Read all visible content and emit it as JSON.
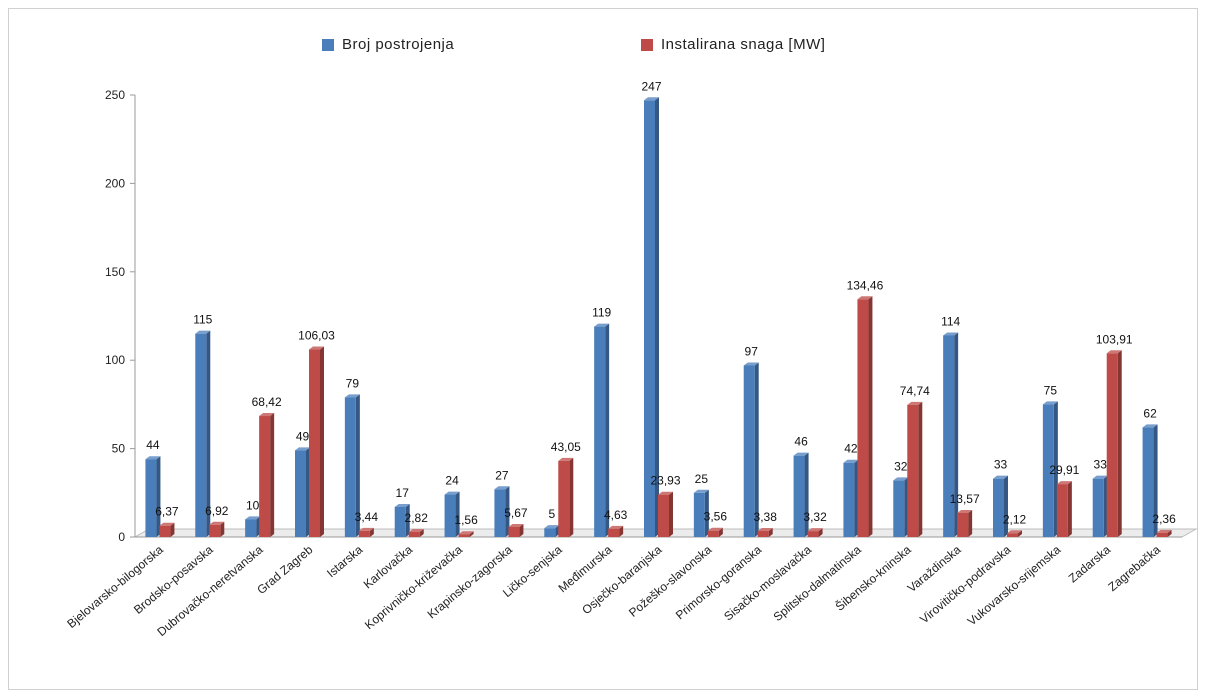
{
  "chart_data": {
    "type": "bar",
    "categories": [
      "Bjelovarsko-bilogorska",
      "Brodsko-posavska",
      "Dubrovačko-neretvanska",
      "Grad Zagreb",
      "Istarska",
      "Karlovačka",
      "Koprivničko-križevačka",
      "Krapinsko-zagorska",
      "Ličko-senjska",
      "Međimurska",
      "Osječko-baranjska",
      "Požeško-slavonska",
      "Primorsko-goranska",
      "Sisačko-moslavačka",
      "Splitsko-dalmatinska",
      "Šibensko-kninska",
      "Varaždinska",
      "Virovitičko-podravska",
      "Vukovarsko-srijemska",
      "Zadarska",
      "Zagrebačka"
    ],
    "series": [
      {
        "name": "Broj postrojenja",
        "color": "#4a7ebb",
        "values": [
          44,
          115,
          10,
          49,
          79,
          17,
          24,
          27,
          5,
          119,
          247,
          25,
          97,
          46,
          42,
          32,
          114,
          33,
          75,
          33,
          62
        ],
        "labels": [
          "44",
          "115",
          "10",
          "49",
          "79",
          "17",
          "24",
          "27",
          "5",
          "119",
          "247",
          "25",
          "97",
          "46",
          "42",
          "32",
          "114",
          "33",
          "75",
          "33",
          "62"
        ]
      },
      {
        "name": "Instalirana snaga [MW]",
        "color": "#be4b48",
        "values": [
          6.37,
          6.92,
          68.42,
          106.03,
          3.44,
          2.82,
          1.56,
          5.67,
          43.05,
          4.63,
          23.93,
          3.56,
          3.38,
          3.32,
          134.46,
          74.74,
          13.57,
          2.12,
          29.91,
          103.91,
          2.36
        ],
        "labels": [
          "6,37",
          "6,92",
          "68,42",
          "106,03",
          "3,44",
          "2,82",
          "1,56",
          "5,67",
          "43,05",
          "4,63",
          "23,93",
          "3,56",
          "3,38",
          "3,32",
          "134,46",
          "74,74",
          "13,57",
          "2,12",
          "29,91",
          "103,91",
          "2,36"
        ]
      }
    ],
    "yticks": [
      "0",
      "50",
      "100",
      "150",
      "200",
      "250"
    ],
    "ylim": [
      0,
      250
    ],
    "grid": false,
    "legend_position": "top",
    "title": "",
    "xlabel": "",
    "ylabel": ""
  },
  "legend": {
    "series1_label": "Broj postrojenja",
    "series2_label": "Instalirana snaga [MW]",
    "series1_color": "#4a7ebb",
    "series2_color": "#be4b48"
  }
}
